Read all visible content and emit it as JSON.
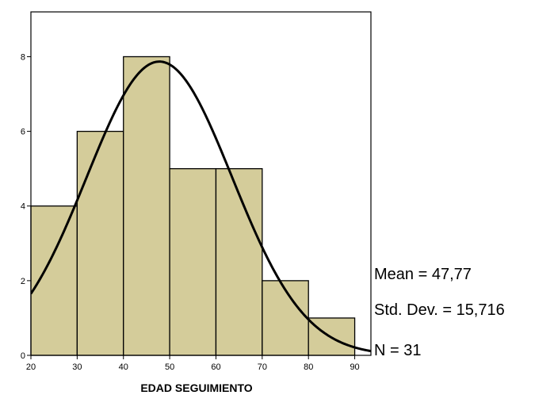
{
  "chart_data": {
    "type": "bar",
    "subtype": "histogram",
    "bins": [
      {
        "start": 20,
        "end": 30,
        "count": 4
      },
      {
        "start": 30,
        "end": 40,
        "count": 6
      },
      {
        "start": 40,
        "end": 50,
        "count": 8
      },
      {
        "start": 50,
        "end": 60,
        "count": 5
      },
      {
        "start": 60,
        "end": 70,
        "count": 5
      },
      {
        "start": 70,
        "end": 80,
        "count": 2
      },
      {
        "start": 80,
        "end": 90,
        "count": 1
      }
    ],
    "xlabel": "EDAD SEGUIMIENTO",
    "ylabel": "",
    "xticks": [
      20,
      30,
      40,
      50,
      60,
      70,
      80,
      90
    ],
    "yticks": [
      0,
      2,
      4,
      6,
      8
    ],
    "xlim": [
      20,
      93.5
    ],
    "ylim": [
      0,
      9.2
    ],
    "normal_curve": {
      "mean": 47.77,
      "std": 15.716,
      "n": 31,
      "bin_width": 10
    },
    "grid": false,
    "colors": {
      "bar_fill": "#d4cc9a",
      "bar_stroke": "#000000",
      "curve": "#000000",
      "background": "#ffffff"
    }
  },
  "stats": {
    "mean_text": "Mean = 47,77",
    "std_text": "Std. Dev. = 15,716",
    "n_text": "N = 31"
  }
}
